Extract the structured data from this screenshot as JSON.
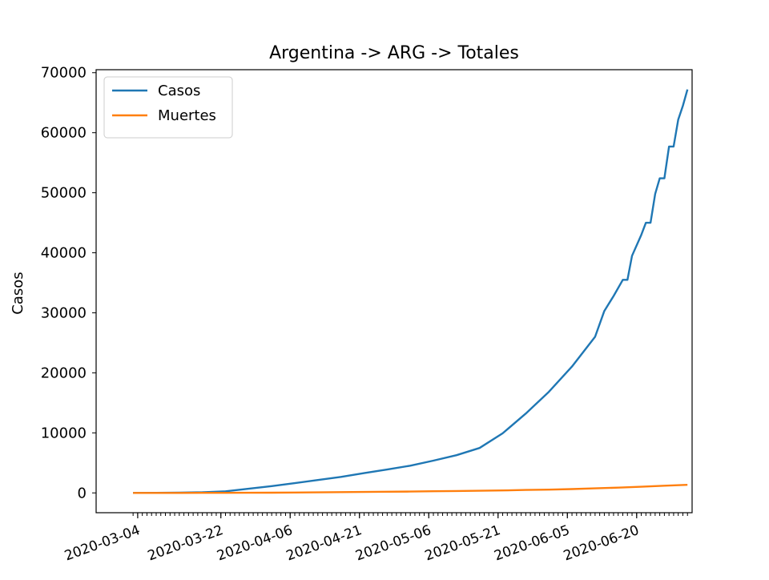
{
  "chart_data": {
    "type": "line",
    "title": "Argentina -> ARG -> Totales",
    "xlabel": "",
    "ylabel": "Casos",
    "ylim": [
      -3300,
      70500
    ],
    "xlim": [
      "2020-02-24",
      "2020-07-01"
    ],
    "yticks": [
      0,
      10000,
      20000,
      30000,
      40000,
      50000,
      60000,
      70000
    ],
    "xticks": [
      "2020-03-04",
      "2020-03-22",
      "2020-04-06",
      "2020-04-21",
      "2020-05-06",
      "2020-05-21",
      "2020-06-05",
      "2020-06-20"
    ],
    "x_minor_ticks": "daily",
    "grid": false,
    "legend_location": "upper left",
    "series": [
      {
        "name": "Casos",
        "color": "#1f77b4",
        "points": [
          [
            "2020-03-03",
            1
          ],
          [
            "2020-03-08",
            12
          ],
          [
            "2020-03-13",
            31
          ],
          [
            "2020-03-18",
            97
          ],
          [
            "2020-03-23",
            266
          ],
          [
            "2020-03-28",
            690
          ],
          [
            "2020-04-02",
            1133
          ],
          [
            "2020-04-07",
            1628
          ],
          [
            "2020-04-12",
            2142
          ],
          [
            "2020-04-17",
            2669
          ],
          [
            "2020-04-22",
            3288
          ],
          [
            "2020-04-27",
            3892
          ],
          [
            "2020-05-02",
            4532
          ],
          [
            "2020-05-07",
            5371
          ],
          [
            "2020-05-12",
            6278
          ],
          [
            "2020-05-17",
            7479
          ],
          [
            "2020-05-22",
            9931
          ],
          [
            "2020-05-27",
            13228
          ],
          [
            "2020-06-01",
            16838
          ],
          [
            "2020-06-06",
            21037
          ],
          [
            "2020-06-11",
            26000
          ],
          [
            "2020-06-13",
            30300
          ],
          [
            "2020-06-15",
            32800
          ],
          [
            "2020-06-17",
            35500
          ],
          [
            "2020-06-18",
            35500
          ],
          [
            "2020-06-19",
            39500
          ],
          [
            "2020-06-21",
            43000
          ],
          [
            "2020-06-22",
            45000
          ],
          [
            "2020-06-23",
            45000
          ],
          [
            "2020-06-24",
            49800
          ],
          [
            "2020-06-25",
            52400
          ],
          [
            "2020-06-26",
            52400
          ],
          [
            "2020-06-27",
            57700
          ],
          [
            "2020-06-28",
            57700
          ],
          [
            "2020-06-29",
            62200
          ],
          [
            "2020-06-30",
            64500
          ],
          [
            "2020-07-01",
            67200
          ]
        ]
      },
      {
        "name": "Muertes",
        "color": "#ff7f0e",
        "points": [
          [
            "2020-03-03",
            0
          ],
          [
            "2020-03-08",
            1
          ],
          [
            "2020-03-13",
            2
          ],
          [
            "2020-03-18",
            3
          ],
          [
            "2020-03-23",
            4
          ],
          [
            "2020-03-28",
            18
          ],
          [
            "2020-04-02",
            36
          ],
          [
            "2020-04-07",
            60
          ],
          [
            "2020-04-12",
            92
          ],
          [
            "2020-04-17",
            129
          ],
          [
            "2020-04-22",
            159
          ],
          [
            "2020-04-27",
            192
          ],
          [
            "2020-05-02",
            225
          ],
          [
            "2020-05-07",
            282
          ],
          [
            "2020-05-12",
            319
          ],
          [
            "2020-05-17",
            356
          ],
          [
            "2020-05-22",
            416
          ],
          [
            "2020-05-27",
            490
          ],
          [
            "2020-06-01",
            537
          ],
          [
            "2020-06-06",
            632
          ],
          [
            "2020-06-11",
            752
          ],
          [
            "2020-06-16",
            880
          ],
          [
            "2020-06-21",
            1030
          ],
          [
            "2020-06-26",
            1200
          ],
          [
            "2020-07-01",
            1350
          ]
        ]
      }
    ]
  }
}
